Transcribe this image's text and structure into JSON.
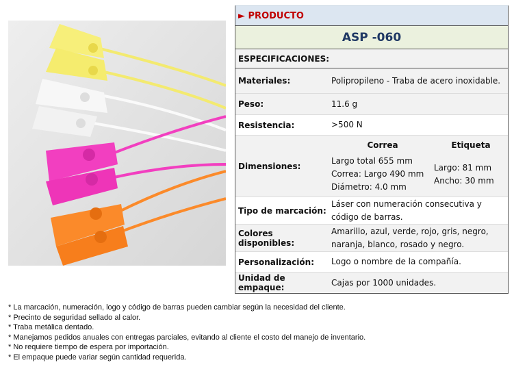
{
  "header": {
    "marker": "►",
    "section": "PRODUCTO",
    "model": "ASP -060",
    "specs_title": "ESPECIFICACIONES:"
  },
  "specs": [
    {
      "label": "Materiales:",
      "value": "Polipropileno - Traba de acero inoxidable."
    },
    {
      "label": "Peso:",
      "value": "11.6 g"
    },
    {
      "label": "Resistencia:",
      "value": ">500 N"
    }
  ],
  "dimensions": {
    "label": "Dimensiones:",
    "strap_header": "Correa",
    "tag_header": "Etiqueta",
    "strap": [
      "Largo total 655 mm",
      "Correa: Largo 490 mm",
      "Diámetro: 4.0 mm"
    ],
    "tag": [
      "Largo: 81 mm",
      "Ancho: 30 mm"
    ]
  },
  "specs2": [
    {
      "label": "Tipo de marcación:",
      "value": "Láser con numeración consecutiva y código de barras."
    },
    {
      "label": "Colores disponibles:",
      "value": "Amarillo, azul, verde, rojo, gris, negro, naranja, blanco, rosado y negro."
    },
    {
      "label": "Personalización:",
      "value": "Logo o nombre de la compañía."
    },
    {
      "label": "Unidad de empaque:",
      "value": "Cajas por 1000 unidades."
    }
  ],
  "notes": [
    "* La marcación, numeración, logo y código de barras pueden cambiar según la necesidad del cliente.",
    "* Precinto de seguridad sellado al calor.",
    "* Traba metálica dentado.",
    "* Manejamos pedidos anuales con entregas parciales, evitando al cliente el costo del manejo de inventario.",
    "* No requiere tiempo de espera por importación.",
    "* El empaque puede variar según cantidad requerida."
  ],
  "colors": {
    "title": "#c00000",
    "model": "#1f3864",
    "yellow": "#f7ef7a",
    "white": "#f4f4f4",
    "pink": "#f23fc0",
    "orange": "#fb8a2a"
  }
}
